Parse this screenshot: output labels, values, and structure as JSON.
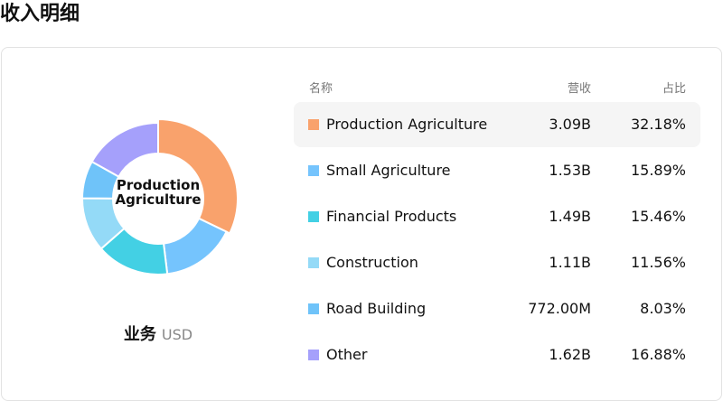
{
  "title": "收入明细",
  "chart_data": {
    "type": "pie",
    "center_label": "Production Agriculture",
    "caption": "业务",
    "unit": "USD",
    "categories": [
      "Production Agriculture",
      "Small Agriculture",
      "Financial Products",
      "Construction",
      "Road Building",
      "Other"
    ],
    "values": [
      32.18,
      15.89,
      15.46,
      11.56,
      8.03,
      16.88
    ],
    "value_labels": [
      "32.18%",
      "15.89%",
      "15.46%",
      "11.56%",
      "8.03%",
      "16.88%"
    ],
    "colors": [
      "#f9a26c",
      "#75c4fd",
      "#43d0e4",
      "#94daf7",
      "#6fc3f9",
      "#a5a0fb"
    ]
  },
  "table": {
    "headers": [
      "名称",
      "营收",
      "占比"
    ],
    "revenue": [
      "3.09B",
      "1.53B",
      "1.49B",
      "1.11B",
      "772.00M",
      "1.62B"
    ]
  }
}
